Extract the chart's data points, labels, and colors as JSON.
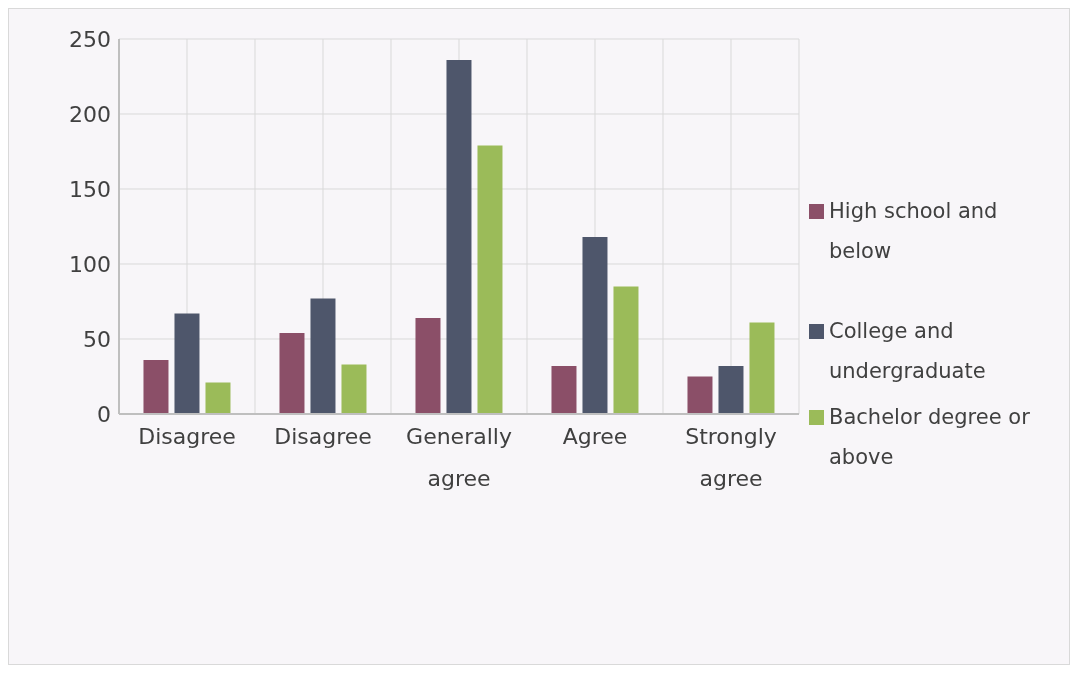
{
  "chart_data": {
    "type": "bar",
    "categories": [
      "Disagree",
      "Disagree",
      "Generally agree",
      "Agree",
      "Strongly agree"
    ],
    "series": [
      {
        "name": "High school and below",
        "color": "#8b4f68",
        "values": [
          36,
          54,
          64,
          32,
          25
        ]
      },
      {
        "name": "College and undergraduate",
        "color": "#4e566b",
        "values": [
          67,
          77,
          236,
          118,
          32
        ]
      },
      {
        "name": "Bachelor degree or above",
        "color": "#9bbb59",
        "values": [
          21,
          33,
          179,
          85,
          61
        ]
      }
    ],
    "ylim": [
      0,
      250
    ],
    "yticks": [
      0,
      50,
      100,
      150,
      200,
      250
    ],
    "grid": true,
    "legend": "right"
  }
}
